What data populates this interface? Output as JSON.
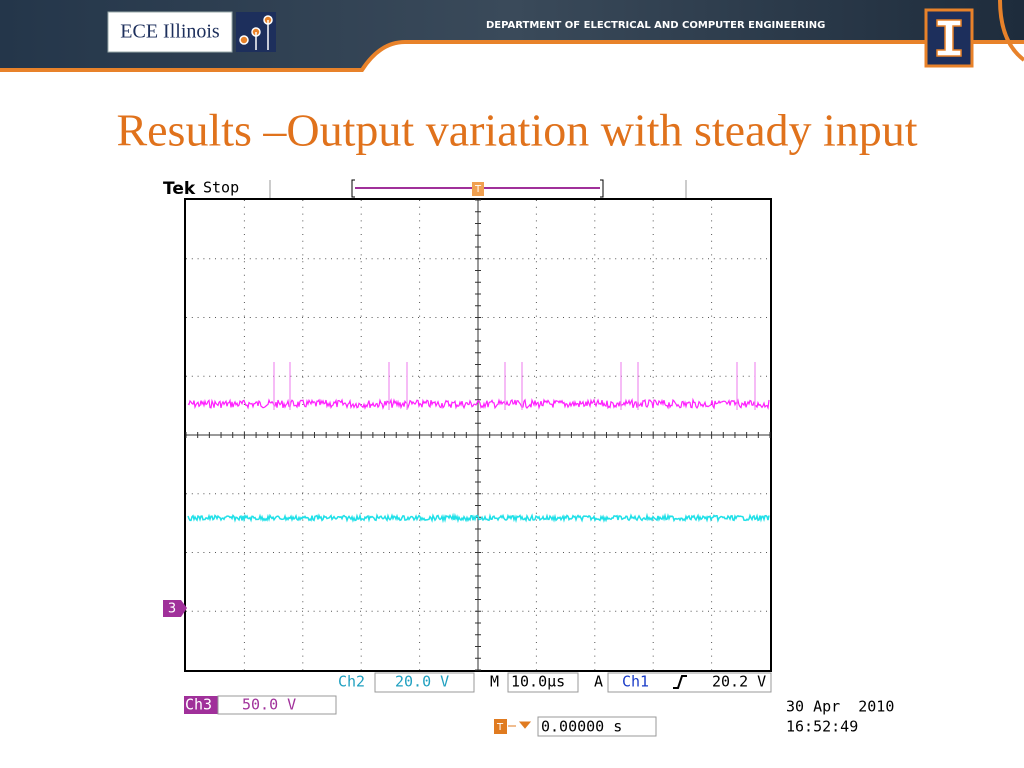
{
  "header": {
    "logo_text": "ECE Illinois",
    "department": "DEPARTMENT OF ELECTRICAL AND COMPUTER ENGINEERING"
  },
  "title": "Results –Output variation with steady input",
  "scope": {
    "brand": "Tek",
    "status": "Stop",
    "trigger_marker": "T",
    "channel_marker": "3",
    "ch2": {
      "label": "Ch2",
      "scale": "20.0 V"
    },
    "timebase": {
      "label": "M",
      "scale": "10.0µs"
    },
    "trigger": {
      "label": "A",
      "source": "Ch1",
      "level": "20.2 V"
    },
    "ch3": {
      "label": "Ch3",
      "scale": "50.0 V"
    },
    "trigger_position": "0.00000 s",
    "date": "30 Apr  2010",
    "time": "16:52:49"
  }
}
